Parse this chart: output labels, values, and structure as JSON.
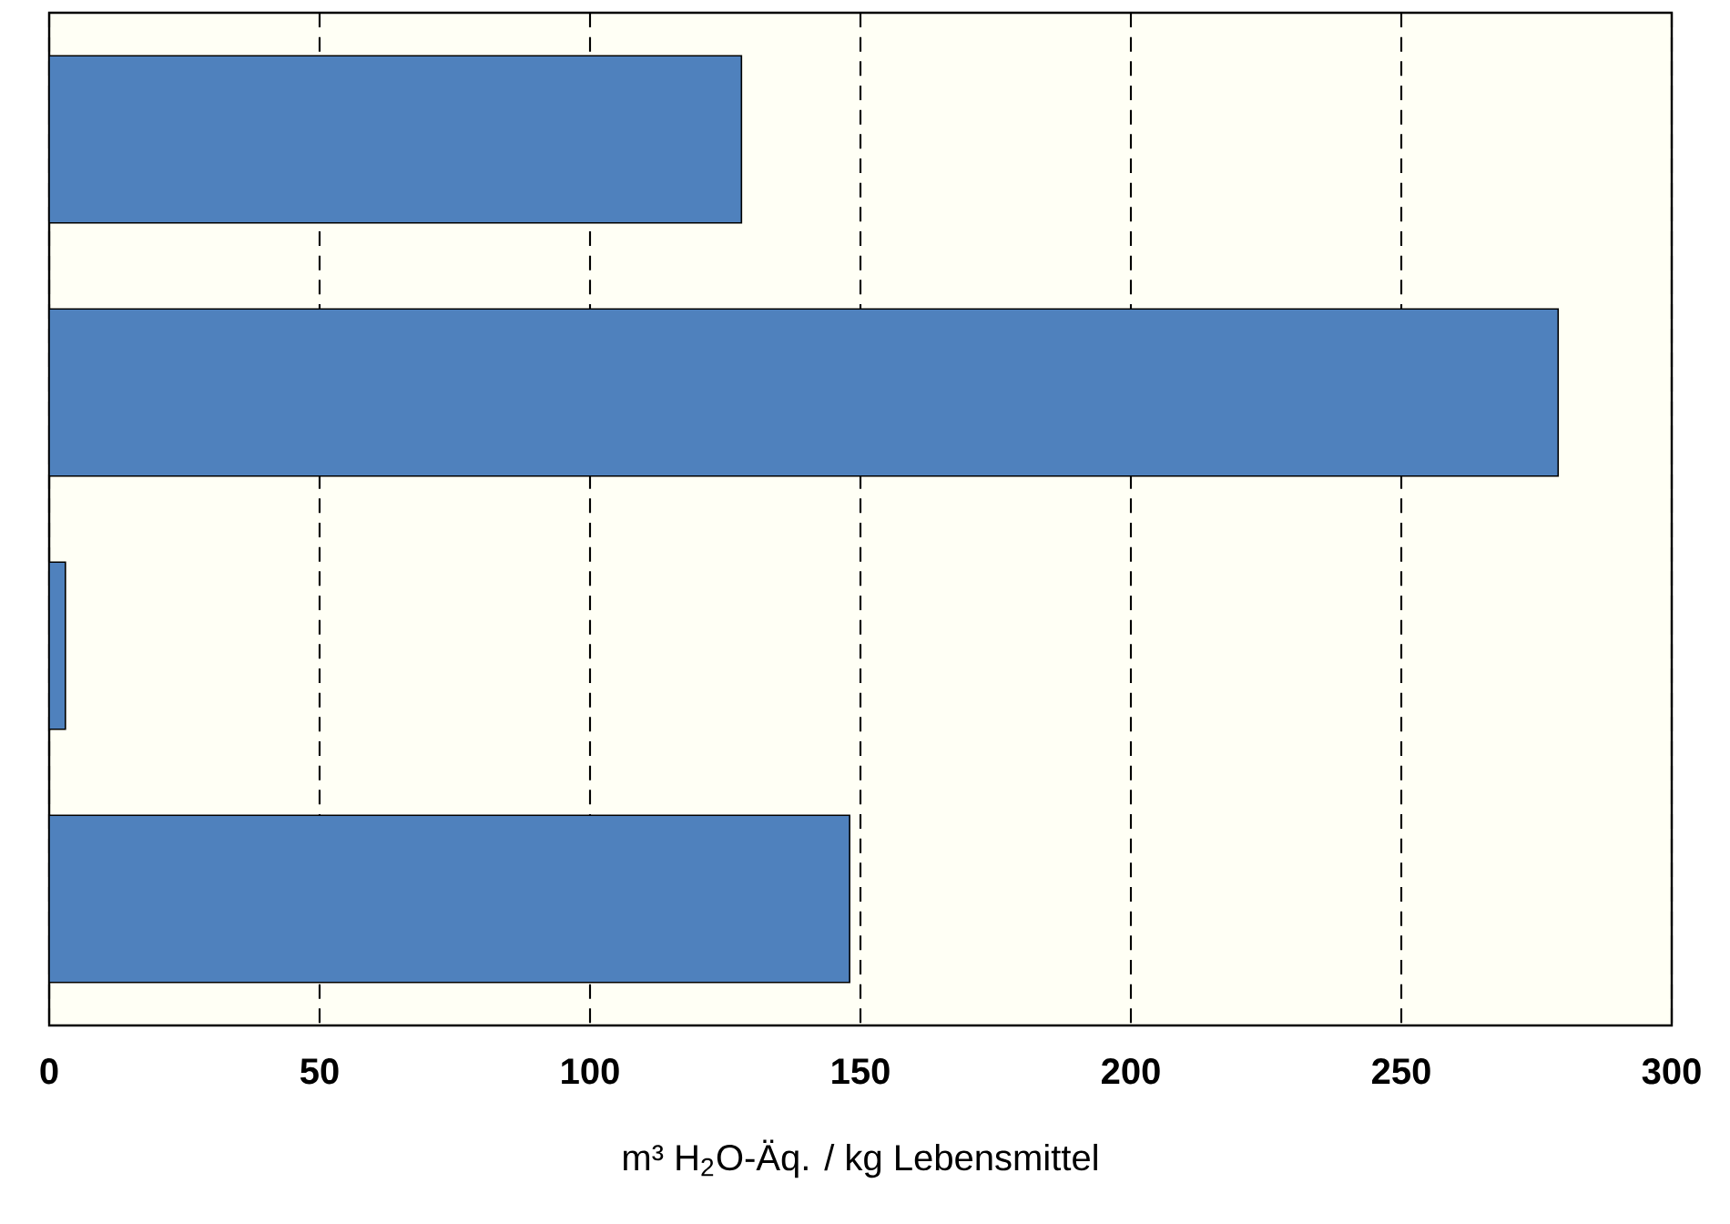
{
  "chart_data": {
    "type": "bar",
    "orientation": "horizontal",
    "xlabel": "m³ H$_{2}$O-Äq. / kg Lebensmittel",
    "categories": [
      null,
      null,
      null,
      null
    ],
    "values": [
      128,
      279,
      3,
      148
    ],
    "color": "#4f81bd",
    "xlim": [
      0,
      300
    ],
    "xticks": [
      0,
      50,
      100,
      150,
      200,
      250,
      300
    ],
    "grid": "x",
    "tick_labels": "x"
  }
}
